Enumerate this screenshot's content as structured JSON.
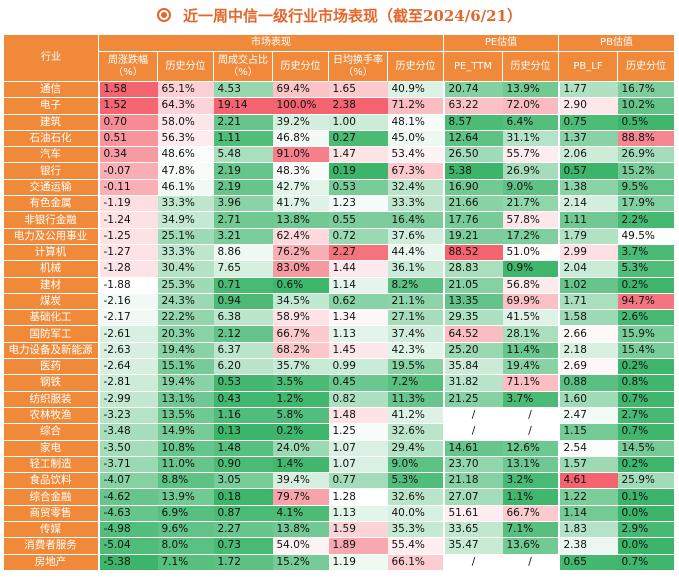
{
  "title": "近一周中信一级行业市场表现（截至2024/6/21）",
  "icon": "target-circle-icon",
  "colors": {
    "header": "#f08a3a",
    "accent": "#e4662a",
    "high": "#f36470",
    "low": "#3cb56a"
  },
  "chart_data": {
    "type": "table",
    "groups": [
      "市场表现",
      "PE估值",
      "PB估值"
    ],
    "header_industry": "行业",
    "columns": [
      "周涨跌幅（%）",
      "历史分位",
      "周成交占比（%）",
      "历史分位",
      "日均换手率（%）",
      "历史分位",
      "PE_TTM",
      "历史分位",
      "PB_LF",
      "历史分位"
    ],
    "rows": [
      {
        "industry": "通信",
        "values": [
          "1.58",
          "65.1%",
          "4.53",
          "69.4%",
          "1.65",
          "40.9%",
          "20.74",
          "13.9%",
          "1.77",
          "16.7%"
        ]
      },
      {
        "industry": "电子",
        "values": [
          "1.52",
          "64.3%",
          "19.14",
          "100.0%",
          "2.38",
          "71.2%",
          "63.22",
          "72.0%",
          "2.90",
          "10.2%"
        ]
      },
      {
        "industry": "建筑",
        "values": [
          "0.70",
          "58.0%",
          "2.21",
          "39.2%",
          "1.00",
          "48.1%",
          "8.57",
          "6.4%",
          "0.75",
          "0.5%"
        ]
      },
      {
        "industry": "石油石化",
        "values": [
          "0.51",
          "56.3%",
          "1.11",
          "46.8%",
          "0.27",
          "45.0%",
          "12.64",
          "31.1%",
          "1.37",
          "88.8%"
        ]
      },
      {
        "industry": "汽车",
        "values": [
          "0.34",
          "48.6%",
          "5.48",
          "91.0%",
          "1.47",
          "53.4%",
          "26.50",
          "55.7%",
          "2.06",
          "26.9%"
        ]
      },
      {
        "industry": "银行",
        "values": [
          "-0.07",
          "47.8%",
          "2.19",
          "48.3%",
          "0.19",
          "67.3%",
          "5.38",
          "26.9%",
          "0.57",
          "15.2%"
        ]
      },
      {
        "industry": "交通运输",
        "values": [
          "-0.11",
          "46.1%",
          "2.19",
          "42.7%",
          "0.53",
          "32.4%",
          "16.90",
          "9.0%",
          "1.38",
          "9.5%"
        ]
      },
      {
        "industry": "有色金属",
        "values": [
          "-1.19",
          "33.3%",
          "3.96",
          "41.7%",
          "1.23",
          "33.3%",
          "21.66",
          "21.7%",
          "2.14",
          "17.9%"
        ]
      },
      {
        "industry": "非银行金融",
        "values": [
          "-1.24",
          "34.9%",
          "2.71",
          "13.8%",
          "0.55",
          "16.4%",
          "17.76",
          "57.8%",
          "1.11",
          "2.2%"
        ]
      },
      {
        "industry": "电力及公用事业",
        "values": [
          "-1.25",
          "25.1%",
          "3.21",
          "62.4%",
          "0.72",
          "37.6%",
          "19.21",
          "17.2%",
          "1.79",
          "49.5%"
        ]
      },
      {
        "industry": "计算机",
        "values": [
          "-1.27",
          "33.3%",
          "8.86",
          "76.2%",
          "2.27",
          "44.4%",
          "88.52",
          "51.0%",
          "2.99",
          "3.7%"
        ]
      },
      {
        "industry": "机械",
        "values": [
          "-1.28",
          "30.4%",
          "7.65",
          "83.0%",
          "1.44",
          "36.1%",
          "28.83",
          "0.9%",
          "2.04",
          "5.3%"
        ]
      },
      {
        "industry": "建材",
        "values": [
          "-1.88",
          "25.3%",
          "0.71",
          "0.6%",
          "1.14",
          "8.2%",
          "21.05",
          "56.8%",
          "1.02",
          "0.2%"
        ]
      },
      {
        "industry": "煤炭",
        "values": [
          "-2.16",
          "24.3%",
          "0.94",
          "34.5%",
          "0.62",
          "21.1%",
          "13.35",
          "69.9%",
          "1.71",
          "94.7%"
        ]
      },
      {
        "industry": "基础化工",
        "values": [
          "-2.17",
          "22.2%",
          "6.38",
          "58.9%",
          "1.34",
          "27.1%",
          "29.35",
          "41.5%",
          "1.58",
          "2.6%"
        ]
      },
      {
        "industry": "国防军工",
        "values": [
          "-2.61",
          "20.3%",
          "2.12",
          "66.7%",
          "1.13",
          "37.4%",
          "64.52",
          "28.1%",
          "2.66",
          "15.9%"
        ]
      },
      {
        "industry": "电力设备及新能源",
        "values": [
          "-2.63",
          "19.4%",
          "6.37",
          "68.2%",
          "1.45",
          "42.3%",
          "25.20",
          "11.4%",
          "2.18",
          "15.4%"
        ]
      },
      {
        "industry": "医药",
        "values": [
          "-2.64",
          "15.1%",
          "6.20",
          "35.7%",
          "0.99",
          "19.5%",
          "35.84",
          "19.4%",
          "2.69",
          "0.2%"
        ]
      },
      {
        "industry": "钢铁",
        "values": [
          "-2.81",
          "19.4%",
          "0.53",
          "3.5%",
          "0.45",
          "7.2%",
          "31.82",
          "71.1%",
          "0.88",
          "0.8%"
        ]
      },
      {
        "industry": "纺织服装",
        "values": [
          "-2.99",
          "13.1%",
          "0.43",
          "1.2%",
          "0.82",
          "11.3%",
          "21.25",
          "3.7%",
          "1.60",
          "0.7%"
        ]
      },
      {
        "industry": "农林牧渔",
        "values": [
          "-3.23",
          "13.5%",
          "1.16",
          "5.8%",
          "1.48",
          "41.2%",
          "/",
          "/",
          "2.47",
          "2.7%"
        ]
      },
      {
        "industry": "综合",
        "values": [
          "-3.48",
          "14.9%",
          "0.13",
          "0.2%",
          "1.25",
          "32.6%",
          "/",
          "/",
          "1.15",
          "0.7%"
        ]
      },
      {
        "industry": "家电",
        "values": [
          "-3.50",
          "10.8%",
          "1.48",
          "24.0%",
          "1.07",
          "29.4%",
          "14.61",
          "12.6%",
          "2.54",
          "14.5%"
        ]
      },
      {
        "industry": "轻工制造",
        "values": [
          "-3.71",
          "11.0%",
          "0.90",
          "1.4%",
          "1.07",
          "9.0%",
          "23.70",
          "13.1%",
          "1.57",
          "0.2%"
        ]
      },
      {
        "industry": "食品饮料",
        "values": [
          "-4.07",
          "8.8%",
          "3.05",
          "39.4%",
          "0.77",
          "5.3%",
          "21.18",
          "3.2%",
          "4.61",
          "25.9%"
        ]
      },
      {
        "industry": "综合金融",
        "values": [
          "-4.62",
          "13.9%",
          "0.18",
          "79.7%",
          "1.28",
          "32.6%",
          "27.07",
          "1.1%",
          "1.22",
          "0.1%"
        ]
      },
      {
        "industry": "商贸零售",
        "values": [
          "-4.63",
          "6.9%",
          "0.87",
          "4.1%",
          "1.13",
          "40.0%",
          "51.61",
          "66.7%",
          "1.14",
          "0.0%"
        ]
      },
      {
        "industry": "传媒",
        "values": [
          "-4.98",
          "9.6%",
          "2.27",
          "13.8%",
          "1.59",
          "35.3%",
          "33.65",
          "7.1%",
          "1.83",
          "2.9%"
        ]
      },
      {
        "industry": "消费者服务",
        "values": [
          "-5.04",
          "8.0%",
          "0.73",
          "54.0%",
          "1.89",
          "55.4%",
          "35.47",
          "13.6%",
          "2.38",
          "0.0%"
        ]
      },
      {
        "industry": "房地产",
        "values": [
          "-5.38",
          "7.1%",
          "1.72",
          "15.2%",
          "1.19",
          "66.1%",
          "/",
          "/",
          "0.65",
          "0.7%"
        ]
      }
    ]
  }
}
